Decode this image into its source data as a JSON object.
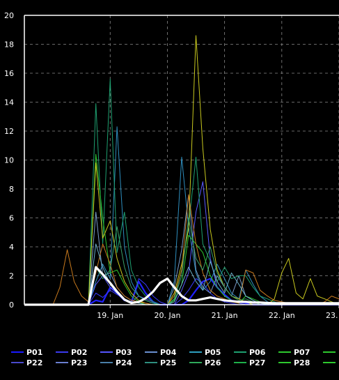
{
  "chart_data": {
    "type": "line",
    "title": "",
    "xlabel": "",
    "ylabel": "",
    "x_ticks": [
      "19. Jan",
      "20. Jan",
      "21. Jan",
      "22. Jan",
      "23. Jan"
    ],
    "y_ticks": [
      0,
      2,
      4,
      6,
      8,
      10,
      12,
      14,
      16,
      18,
      20
    ],
    "xlim": [
      "2020-01-18 00:00",
      "2020-01-23 12:00"
    ],
    "ylim": [
      0,
      20
    ],
    "grid": true,
    "legend_placement": "bottom",
    "legend": [
      [
        "P01",
        "P02",
        "P03",
        "P04",
        "P05",
        "P06",
        "P07"
      ],
      [
        "P22",
        "P23",
        "P24",
        "P25",
        "P26",
        "P27",
        "P28"
      ]
    ],
    "x": [
      "18.00",
      "18.12",
      "18.25",
      "18.37",
      "18.50",
      "18.62",
      "18.75",
      "18.87",
      "19.00",
      "19.12",
      "19.25",
      "19.37",
      "19.50",
      "19.62",
      "19.75",
      "19.87",
      "20.00",
      "20.12",
      "20.25",
      "20.37",
      "20.50",
      "20.62",
      "20.75",
      "20.87",
      "21.00",
      "21.12",
      "21.25",
      "21.37",
      "21.50",
      "21.62",
      "21.75",
      "21.87",
      "22.00",
      "22.12",
      "22.25",
      "22.37",
      "22.50",
      "22.62",
      "22.75",
      "22.87",
      "23.00",
      "23.12",
      "23.25",
      "23.37",
      "23.50"
    ],
    "x_note": "fractional day-of-January, 3-hour steps",
    "series": [
      {
        "color": "#2020ff",
        "width": 2.2,
        "values": [
          0,
          0,
          0,
          0,
          0,
          0,
          0,
          0,
          0,
          0,
          0.3,
          0.2,
          1.2,
          0.8,
          0.3,
          0.2,
          1.6,
          0.8,
          0.2,
          0,
          0,
          0,
          0,
          0.3,
          1,
          1.6,
          1.8,
          1.2,
          0.7,
          0.3,
          0.2,
          0.1,
          0,
          0,
          0,
          0,
          0,
          0,
          0,
          0,
          0,
          0,
          0,
          0,
          0
        ]
      },
      {
        "color": "#3a3aff",
        "width": 1,
        "values": [
          0,
          0,
          0,
          0,
          0,
          0,
          0,
          0,
          0,
          0,
          0.8,
          0.5,
          1.0,
          0.7,
          0.4,
          0.2,
          1.8,
          1.4,
          0.6,
          0.2,
          0,
          0,
          0.4,
          1.0,
          1.8,
          1.5,
          0.8,
          0.4,
          0.2,
          0.1,
          0,
          0,
          0,
          0,
          0,
          0,
          0,
          0,
          0,
          0,
          0,
          0,
          0,
          0,
          0
        ]
      },
      {
        "color": "#5a5aff",
        "width": 1,
        "values": [
          0,
          0,
          0,
          0,
          0,
          0,
          0,
          0,
          0,
          0,
          1.4,
          2.0,
          1.2,
          0.8,
          0.4,
          0.2,
          0.6,
          0.4,
          0.2,
          0,
          0,
          0,
          1.0,
          2.2,
          6.4,
          8.5,
          3.2,
          1.2,
          0.6,
          0.3,
          0.1,
          0,
          0,
          0,
          0,
          0,
          0,
          0,
          0,
          0,
          0,
          0,
          0,
          0,
          0
        ]
      },
      {
        "color": "#7a9cc8",
        "width": 1,
        "values": [
          0,
          0,
          0,
          0,
          0,
          0,
          0,
          0,
          0,
          0,
          6.4,
          2.0,
          2.2,
          1.2,
          0.6,
          0.3,
          0.2,
          0.1,
          0,
          0,
          0,
          1.2,
          3.8,
          7.6,
          2.4,
          1.2,
          0.8,
          2.0,
          1.2,
          0.6,
          2.0,
          0.6,
          0.3,
          0,
          0,
          0,
          0,
          0,
          0,
          0,
          0,
          0,
          0,
          0,
          0
        ]
      },
      {
        "color": "#2e8fbf",
        "width": 1,
        "values": [
          0,
          0,
          0,
          0,
          0,
          0,
          0,
          0,
          0,
          0,
          1.6,
          2.8,
          1.8,
          12.3,
          4.0,
          1.6,
          0.6,
          0.3,
          0.1,
          0,
          0,
          1.6,
          10.2,
          5.4,
          2.2,
          1.0,
          1.6,
          2.8,
          1.8,
          0.8,
          0.4,
          2.4,
          1.4,
          0.6,
          0.2,
          0,
          0,
          0,
          0,
          0,
          0,
          0,
          0,
          0,
          0
        ]
      },
      {
        "color": "#1ea070",
        "width": 1,
        "values": [
          0,
          0,
          0,
          0,
          0,
          0,
          0,
          0,
          0,
          0,
          13.9,
          4.2,
          15.6,
          3.6,
          6.4,
          2.4,
          1.2,
          0.6,
          0.2,
          0,
          0,
          0.4,
          2.4,
          5.4,
          10.2,
          4.2,
          3.0,
          1.6,
          2.6,
          1.8,
          2.0,
          2.0,
          1.2,
          0.6,
          0.4,
          0.2,
          0,
          0,
          0,
          0,
          0,
          0,
          0,
          0,
          0
        ]
      },
      {
        "color": "#2ec82e",
        "width": 1,
        "values": [
          0,
          0,
          0,
          0,
          0,
          0,
          0,
          0,
          0,
          0,
          10.4,
          6.0,
          2.2,
          2.4,
          1.4,
          0.6,
          0.2,
          0,
          0,
          0,
          0,
          0.3,
          1.4,
          4.8,
          4.2,
          3.6,
          2.0,
          1.2,
          0.6,
          0.3,
          0.1,
          0.6,
          0.4,
          0.2,
          0,
          0,
          0,
          0,
          0,
          0,
          0,
          0,
          0,
          0,
          0
        ]
      },
      {
        "color": "#c8c81e",
        "width": 1,
        "values": [
          0,
          0,
          0,
          0,
          0,
          0,
          0,
          0,
          0,
          0,
          9.8,
          4.6,
          5.8,
          3.2,
          1.6,
          0.8,
          0.3,
          0.1,
          0,
          0,
          0,
          0.8,
          2.8,
          5.2,
          18.6,
          10.8,
          5.2,
          2.4,
          1.2,
          0.6,
          0.4,
          0.2,
          0,
          0,
          0,
          0.4,
          2.2,
          3.2,
          0.8,
          0.4,
          1.8,
          0.6,
          0.4,
          0.2,
          0
        ]
      },
      {
        "color": "#c87a1e",
        "width": 1,
        "values": [
          0,
          0,
          0,
          0,
          0,
          1.2,
          3.8,
          1.6,
          0.6,
          0.2,
          2.2,
          4.2,
          2.8,
          1.2,
          0.6,
          0.3,
          0.2,
          0.1,
          0,
          0,
          0,
          0.6,
          2.4,
          7.6,
          4.2,
          2.2,
          1.0,
          0.6,
          0.4,
          0.2,
          0.1,
          2.4,
          2.2,
          1.0,
          0.6,
          0.3,
          0.2,
          0.1,
          0,
          0,
          0,
          0,
          0.2,
          0.6,
          0.4
        ]
      },
      {
        "color": "#3aa06a",
        "width": 1,
        "values": [
          0,
          0,
          0,
          0,
          0,
          0,
          0,
          0,
          0,
          0,
          2.6,
          1.8,
          2.4,
          5.4,
          2.6,
          1.2,
          0.6,
          0.3,
          0.1,
          0,
          0,
          0.4,
          2.0,
          6.0,
          3.2,
          2.4,
          4.0,
          2.2,
          1.2,
          0.6,
          0.3,
          0.4,
          0.2,
          0,
          0,
          0,
          0,
          0,
          0,
          0,
          0,
          0,
          0,
          0,
          0
        ]
      },
      {
        "color": "#6ab0c8",
        "width": 1,
        "values": [
          0,
          0,
          0,
          0,
          0,
          0,
          0,
          0,
          0,
          0,
          4.2,
          2.6,
          1.4,
          0.8,
          0.4,
          0.2,
          0.1,
          0,
          0,
          0,
          0,
          0.2,
          1.4,
          2.6,
          1.6,
          1.0,
          3.0,
          1.6,
          0.8,
          2.2,
          1.4,
          0.6,
          0.3,
          0.1,
          0,
          0,
          0,
          0,
          0,
          0,
          0,
          0,
          0,
          0,
          0
        ]
      },
      {
        "color": "#ffffff",
        "width": 3.2,
        "values": [
          0,
          0,
          0,
          0,
          0,
          0,
          0,
          0,
          0,
          0,
          2.6,
          2.1,
          1.5,
          0.9,
          0.35,
          0.12,
          0.2,
          0.45,
          0.9,
          1.5,
          1.8,
          1.2,
          0.6,
          0.3,
          0.3,
          0.4,
          0.5,
          0.4,
          0.3,
          0.25,
          0.2,
          0.2,
          0.15,
          0.15,
          0.12,
          0.1,
          0.1,
          0.1,
          0.1,
          0.1,
          0.1,
          0.1,
          0.1,
          0.1,
          0.1
        ]
      }
    ]
  },
  "legend_colors": [
    [
      "#1a1aff",
      "#3a3aee",
      "#5555ff",
      "#6a8fd0",
      "#2e9fbf",
      "#1ea070",
      "#2ec82e"
    ],
    [
      "#4a4acc",
      "#6a7fcf",
      "#4a7fa8",
      "#2e8f7f",
      "#2ea85a",
      "#1eb04a",
      "#2ec82e"
    ]
  ]
}
